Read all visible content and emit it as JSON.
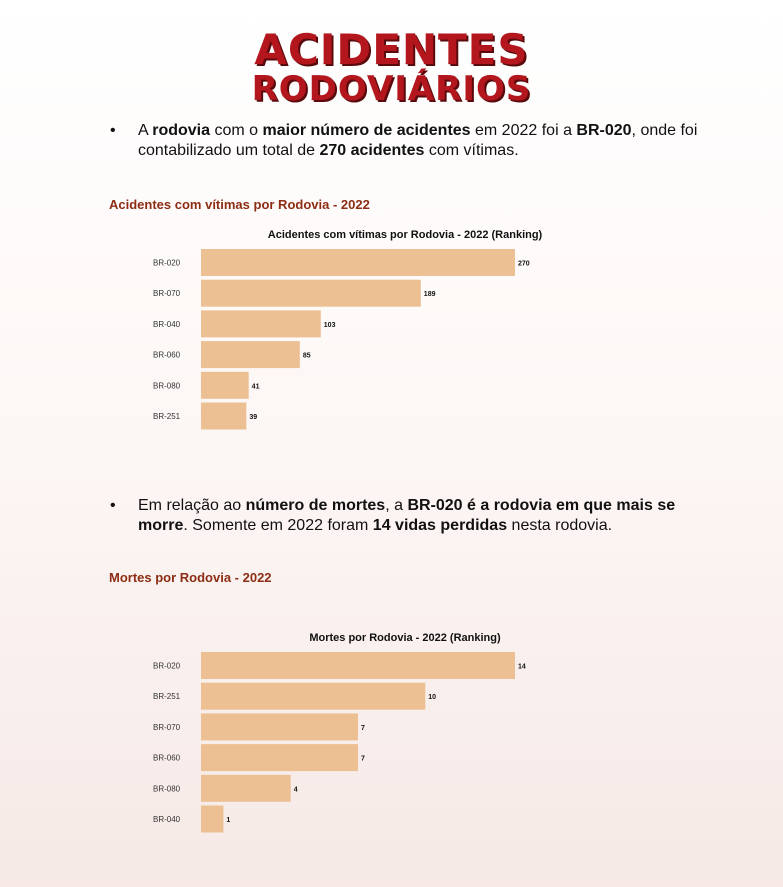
{
  "header": {
    "title_line1": "ACIDENTES",
    "title_line2": "RODOVIÁRIOS"
  },
  "bullet1": {
    "marker": "•",
    "parts": [
      {
        "text": "A ",
        "bold": false
      },
      {
        "text": "rodovia",
        "bold": true
      },
      {
        "text": " com o ",
        "bold": false
      },
      {
        "text": "maior número de acidentes",
        "bold": true
      },
      {
        "text": " em 2022 foi a ",
        "bold": false
      },
      {
        "text": "BR-020",
        "bold": true
      },
      {
        "text": ", onde foi contabilizado um total de ",
        "bold": false
      },
      {
        "text": "270 acidentes",
        "bold": true
      },
      {
        "text": " com vítimas.",
        "bold": false
      }
    ]
  },
  "section1": {
    "title": "Acidentes com vítimas por Rodovia - 2022"
  },
  "bullet2": {
    "marker": "•",
    "parts": [
      {
        "text": "Em relação ao ",
        "bold": false
      },
      {
        "text": "número de mortes",
        "bold": true
      },
      {
        "text": ", a ",
        "bold": false
      },
      {
        "text": "BR-020 é a rodovia em que mais se morre",
        "bold": true
      },
      {
        "text": ". Somente em 2022 foram ",
        "bold": false
      },
      {
        "text": "14 vidas perdidas",
        "bold": true
      },
      {
        "text": " nesta rodovia.",
        "bold": false
      }
    ]
  },
  "section2": {
    "title": "Mortes por Rodovia - 2022"
  },
  "colors": {
    "bar": "#ecc093",
    "title_red": "#b3161c",
    "section": "#8c2d14"
  },
  "chart_data": [
    {
      "type": "bar",
      "orientation": "horizontal",
      "title": "Acidentes com vítimas por Rodovia - 2022 (Ranking)",
      "categories": [
        "BR-020",
        "BR-070",
        "BR-040",
        "BR-060",
        "BR-080",
        "BR-251"
      ],
      "values": [
        270,
        189,
        103,
        85,
        41,
        39
      ],
      "xlim": [
        0,
        270
      ],
      "grid": false,
      "legend": "none"
    },
    {
      "type": "bar",
      "orientation": "horizontal",
      "title": "Mortes por Rodovia - 2022 (Ranking)",
      "categories": [
        "BR-020",
        "BR-251",
        "BR-070",
        "BR-060",
        "BR-080",
        "BR-040"
      ],
      "values": [
        14,
        10,
        7,
        7,
        4,
        1
      ],
      "xlim": [
        0,
        14
      ],
      "grid": false,
      "legend": "none"
    }
  ]
}
